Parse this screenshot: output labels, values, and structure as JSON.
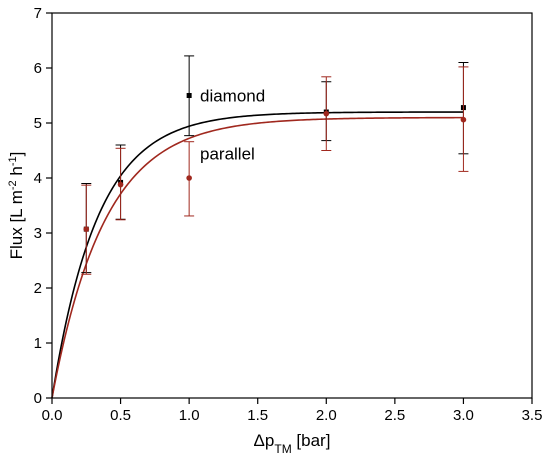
{
  "chart_data": {
    "type": "scatter",
    "xlabel": {
      "main": "Δp",
      "sub": "TM",
      "rest": " [bar]"
    },
    "ylabel": {
      "main": "Flux [L m",
      "sup1": "-2",
      "mid": " h",
      "sup2": "-1",
      "rest": "]"
    },
    "xlim": [
      0,
      3.5
    ],
    "ylim": [
      0,
      7
    ],
    "xticks": [
      0,
      0.5,
      1,
      1.5,
      2,
      2.5,
      3,
      3.5
    ],
    "xtick_labels": [
      "0.0",
      "0.5",
      "1.0",
      "1.5",
      "2.0",
      "2.5",
      "3.0",
      "3.5"
    ],
    "yticks": [
      0,
      1,
      2,
      3,
      4,
      5,
      6,
      7
    ],
    "ytick_labels": [
      "0",
      "1",
      "2",
      "3",
      "4",
      "5",
      "6",
      "7"
    ],
    "grid": false,
    "series": [
      {
        "name": "diamond",
        "color": "#000000",
        "points": [
          {
            "x": 0.25,
            "y": 3.07,
            "err_low": 2.28,
            "err_high": 3.9
          },
          {
            "x": 0.5,
            "y": 3.92,
            "err_low": 3.25,
            "err_high": 4.6
          },
          {
            "x": 1.0,
            "y": 5.5,
            "err_low": 4.77,
            "err_high": 6.22
          },
          {
            "x": 2.0,
            "y": 5.2,
            "err_low": 4.68,
            "err_high": 5.75
          },
          {
            "x": 3.0,
            "y": 5.28,
            "err_low": 4.44,
            "err_high": 6.1
          }
        ],
        "fit": {
          "model": "a*(1-exp(-k*x))",
          "a": 5.2,
          "k": 3.0
        }
      },
      {
        "name": "parallel",
        "color": "#a0281e",
        "points": [
          {
            "x": 0.25,
            "y": 3.07,
            "err_low": 2.25,
            "err_high": 3.87
          },
          {
            "x": 0.5,
            "y": 3.88,
            "err_low": 3.24,
            "err_high": 4.54
          },
          {
            "x": 1.0,
            "y": 4.0,
            "err_low": 3.31,
            "err_high": 4.66
          },
          {
            "x": 2.0,
            "y": 5.17,
            "err_low": 4.5,
            "err_high": 5.84
          },
          {
            "x": 3.0,
            "y": 5.06,
            "err_low": 4.12,
            "err_high": 6.02
          }
        ],
        "fit": {
          "model": "a*(1-exp(-k*x))",
          "a": 5.1,
          "k": 2.6
        }
      }
    ],
    "annotations": [
      {
        "text": "diamond",
        "x": 1.05,
        "y": 5.5
      },
      {
        "text": "parallel",
        "x": 1.05,
        "y": 4.45
      }
    ]
  }
}
